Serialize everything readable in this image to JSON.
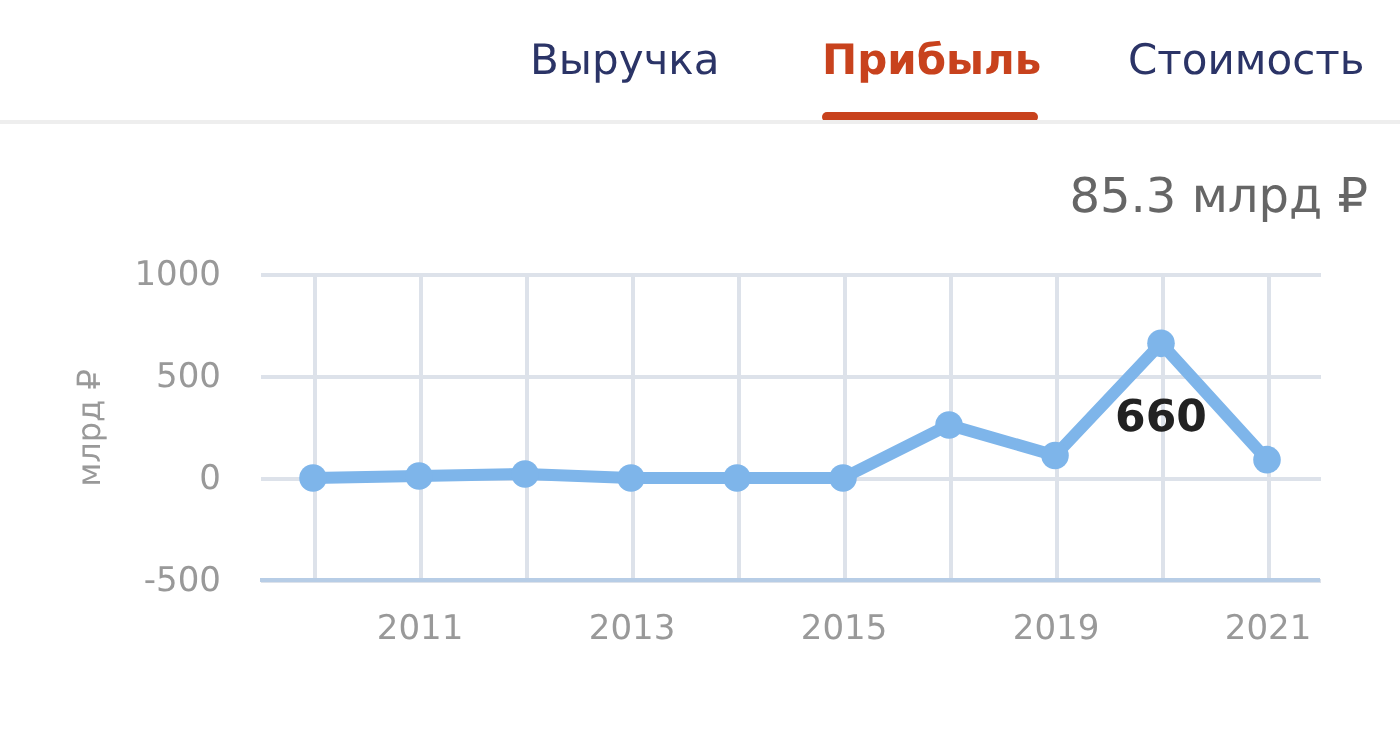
{
  "chart_data": {
    "type": "line",
    "ylabel": "млрд ₽",
    "annotations": [
      "Выручка",
      "Прибыль",
      "Стоимость",
      "85.3 млрд ₽"
    ],
    "categories": [
      null,
      "2011",
      null,
      "2013",
      null,
      "2015",
      null,
      "2019",
      null,
      "2021"
    ],
    "series": [
      {
        "color": "#7eb5ea",
        "values": [
          0,
          10,
          20,
          0,
          0,
          0,
          260,
          110,
          660,
          90
        ],
        "value_labels": [
          null,
          null,
          null,
          null,
          null,
          null,
          null,
          null,
          "660",
          null
        ]
      }
    ],
    "ylim": [
      -500,
      1000
    ],
    "yticks": [
      -500,
      0,
      500,
      1000
    ],
    "grid": true,
    "marker": "circle",
    "line_style": "solid"
  }
}
